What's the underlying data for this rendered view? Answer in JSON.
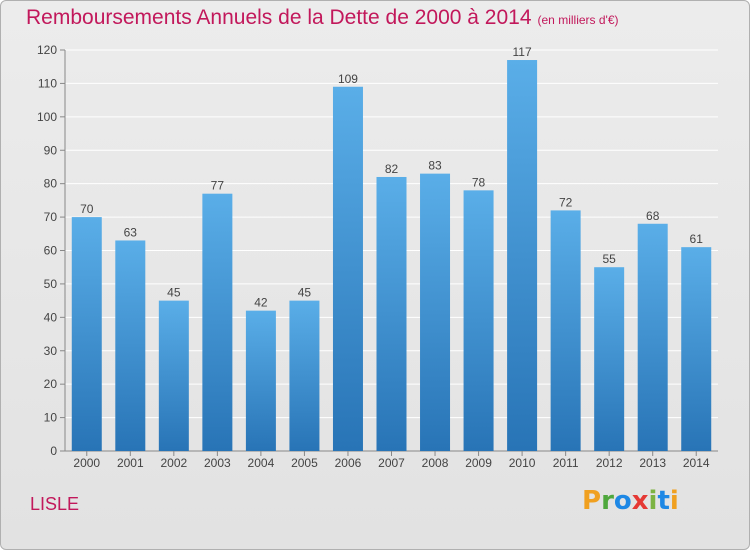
{
  "header": {
    "title": "Remboursements Annuels de la Dette de 2000 à 2014",
    "unit": "(en milliers d'€)"
  },
  "footer": {
    "town": "LISLE",
    "logo": "Proxiti"
  },
  "colors": {
    "title": "#c2185b",
    "bar_light": "#5aaee8",
    "bar_dark": "#2874b6"
  },
  "chart_data": {
    "type": "bar",
    "title": "Remboursements Annuels de la Dette de 2000 à 2014",
    "subtitle": "(en milliers d'€)",
    "categories": [
      "2000",
      "2001",
      "2002",
      "2003",
      "2004",
      "2005",
      "2006",
      "2007",
      "2008",
      "2009",
      "2010",
      "2011",
      "2012",
      "2013",
      "2014"
    ],
    "values": [
      70,
      63,
      45,
      77,
      42,
      45,
      109,
      82,
      83,
      78,
      117,
      72,
      55,
      68,
      61
    ],
    "ylim": [
      0,
      120
    ],
    "yticks": [
      0,
      10,
      20,
      30,
      40,
      50,
      60,
      70,
      80,
      90,
      100,
      110,
      120
    ],
    "grid": true,
    "xlabel": "",
    "ylabel": ""
  }
}
